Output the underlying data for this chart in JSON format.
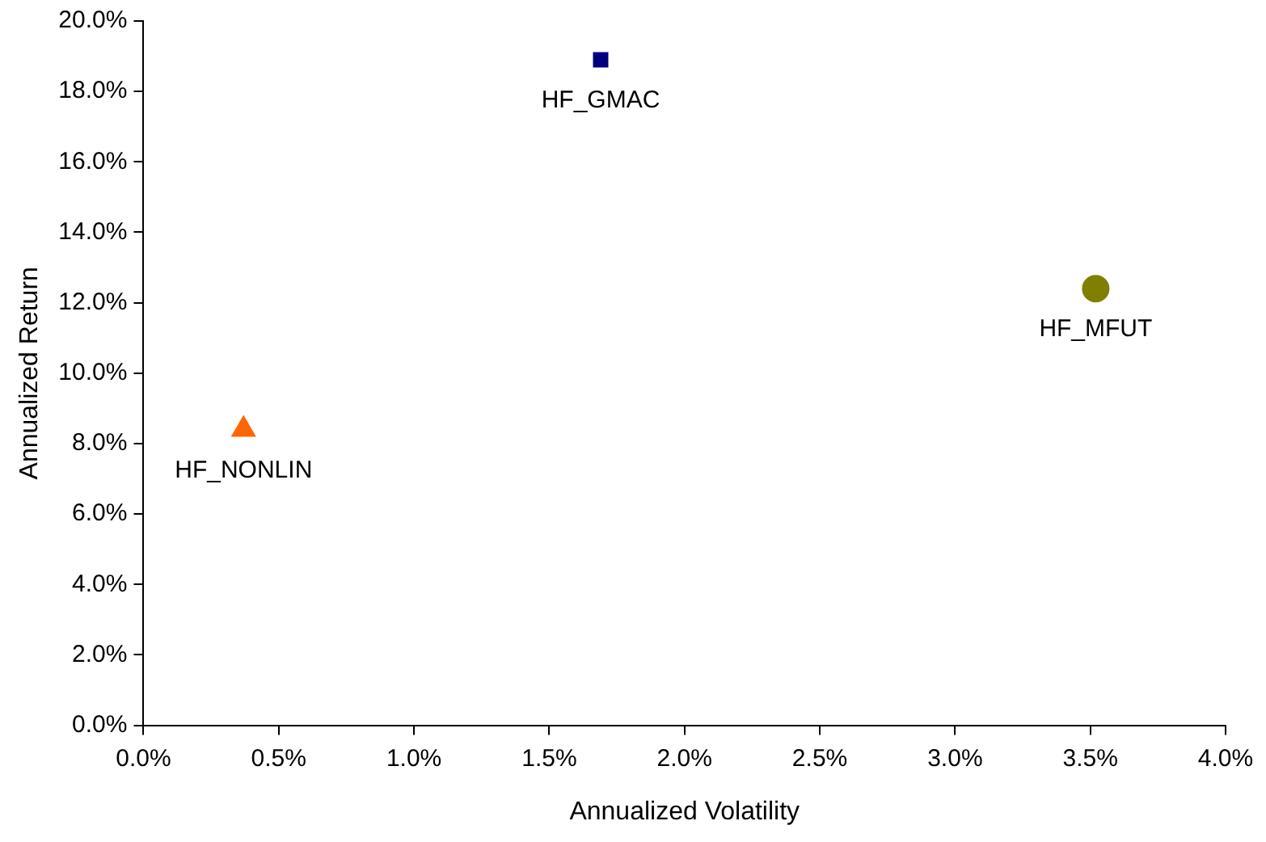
{
  "chart_data": {
    "type": "scatter",
    "xlabel": "Annualized Volatility",
    "ylabel": "Annualized Return",
    "xlim": [
      0,
      4
    ],
    "ylim": [
      0,
      20
    ],
    "xticks": [
      {
        "value": 0,
        "label": "0.0%"
      },
      {
        "value": 0.5,
        "label": "0.5%"
      },
      {
        "value": 1,
        "label": "1.0%"
      },
      {
        "value": 1.5,
        "label": "1.5%"
      },
      {
        "value": 2,
        "label": "2.0%"
      },
      {
        "value": 2.5,
        "label": "2.5%"
      },
      {
        "value": 3,
        "label": "3.0%"
      },
      {
        "value": 3.5,
        "label": "3.5%"
      },
      {
        "value": 4,
        "label": "4.0%"
      }
    ],
    "yticks": [
      {
        "value": 0,
        "label": "0.0%"
      },
      {
        "value": 2,
        "label": "2.0%"
      },
      {
        "value": 4,
        "label": "4.0%"
      },
      {
        "value": 6,
        "label": "6.0%"
      },
      {
        "value": 8,
        "label": "8.0%"
      },
      {
        "value": 10,
        "label": "10.0%"
      },
      {
        "value": 12,
        "label": "12.0%"
      },
      {
        "value": 14,
        "label": "14.0%"
      },
      {
        "value": 16,
        "label": "16.0%"
      },
      {
        "value": 18,
        "label": "18.0%"
      },
      {
        "value": 20,
        "label": "20.0%"
      }
    ],
    "grid": false,
    "legend": false,
    "series": [
      {
        "name": "HF_GMAC",
        "color": "#000080",
        "marker": "square",
        "x": [
          1.69
        ],
        "values": [
          18.9
        ]
      },
      {
        "name": "HF_MFUT",
        "color": "#808000",
        "marker": "circle",
        "x": [
          3.52
        ],
        "values": [
          12.4
        ]
      },
      {
        "name": "HF_NONLIN",
        "color": "#ff6600",
        "marker": "triangle",
        "x": [
          0.37
        ],
        "values": [
          8.4
        ]
      }
    ]
  }
}
